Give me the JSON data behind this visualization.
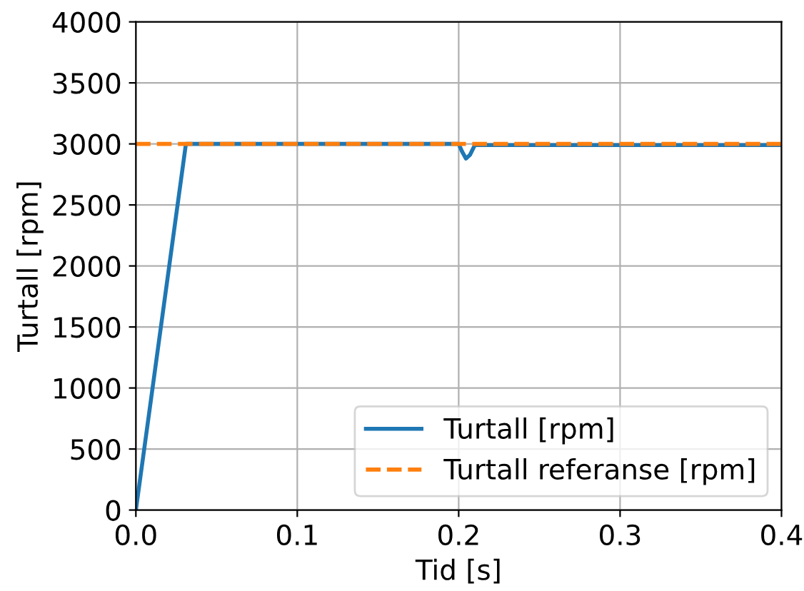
{
  "chart_data": {
    "type": "line",
    "xlabel": "Tid [s]",
    "ylabel": "Turtall [rpm]",
    "xlim": [
      0,
      0.4
    ],
    "ylim": [
      0,
      4000
    ],
    "xticks": [
      {
        "value": 0,
        "label": "0.0"
      },
      0.1,
      0.2,
      0.3,
      0.4
    ],
    "yticks": [
      0,
      500,
      1000,
      1500,
      2000,
      2500,
      3000,
      3500,
      4000
    ],
    "grid": true,
    "legend": "bottom right",
    "series": [
      {
        "name": "Turtall [rpm]",
        "color": "#1f77b4",
        "line_style": "solid",
        "x": [
          0,
          0.031,
          0.1,
          0.2,
          0.202,
          0.2045,
          0.207,
          0.21,
          0.3,
          0.4
        ],
        "values": [
          0,
          3000,
          3000,
          3000,
          2940,
          2880,
          2910,
          2990,
          2990,
          2990
        ]
      },
      {
        "name": "Turtall referanse [rpm]",
        "color": "#ff7f0e",
        "line_style": "dashed",
        "x": [
          0,
          0.4
        ],
        "values": [
          3000,
          3000
        ]
      }
    ]
  }
}
